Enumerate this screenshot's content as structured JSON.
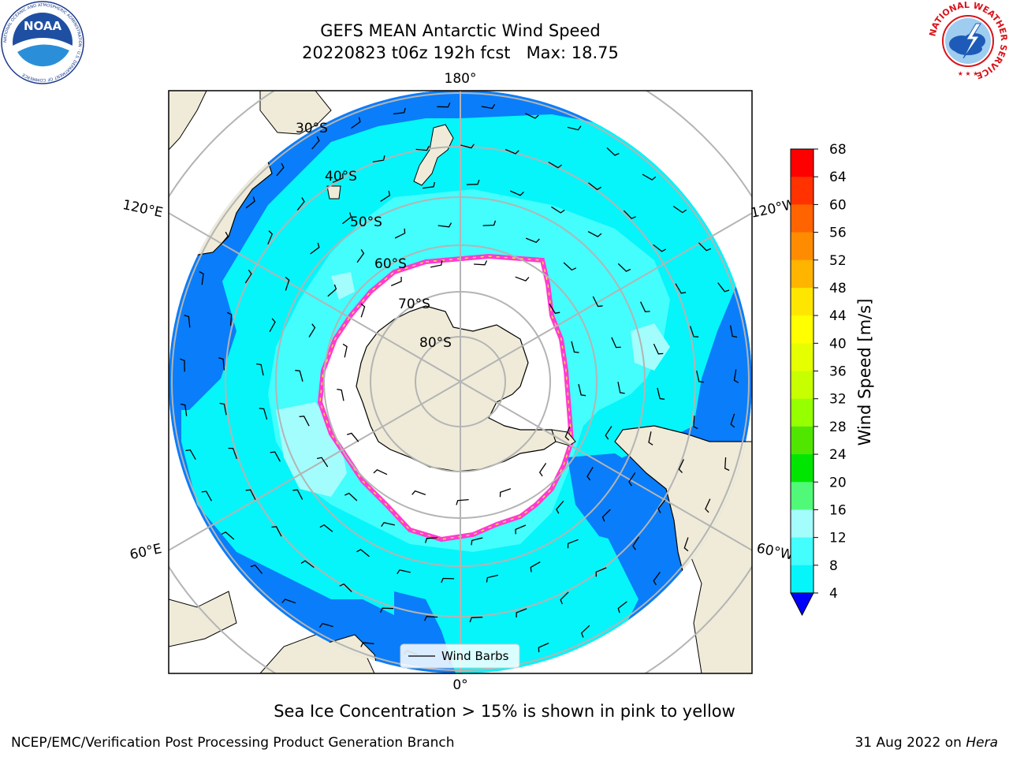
{
  "header": {
    "title": "GEFS MEAN Antarctic Wind Speed",
    "subtitle": "20220823 t06z 192h fcst   Max: 18.75"
  },
  "map": {
    "longitude_labels": {
      "top": "180°",
      "bottom": "0°",
      "upper_left": "120°E",
      "upper_right": "120°W",
      "lower_left": "60°E",
      "lower_right": "60°W"
    },
    "latitude_labels": [
      "30°S",
      "40°S",
      "50°S",
      "60°S",
      "70°S",
      "80°S"
    ],
    "legend_label": "Wind Barbs",
    "colors": {
      "land": "#efebd8",
      "sea_ice": "#ffffff",
      "ice_edge_pink": "#ff3ccf",
      "ice_edge_yellow": "#ffd84a",
      "wind_4_8": "#0a7dfa",
      "wind_8_12": "#05f5fa",
      "wind_12_16": "#44fdfd",
      "wind_16_20": "#a3fdfd"
    }
  },
  "colorbar": {
    "label": "Wind Speed [m/s]",
    "ticks": [
      "68",
      "64",
      "60",
      "56",
      "52",
      "48",
      "44",
      "40",
      "36",
      "32",
      "28",
      "24",
      "20",
      "16",
      "12",
      "8",
      "4"
    ],
    "colors": [
      "#ff0000",
      "#ff3200",
      "#ff6400",
      "#ff8c00",
      "#ffb400",
      "#ffe600",
      "#ffff00",
      "#e6ff00",
      "#c8ff00",
      "#96ff00",
      "#50e600",
      "#00e600",
      "#50fa78",
      "#a3fdfd",
      "#44fdfd",
      "#05f5fa",
      "#0a7dfa"
    ],
    "under_color": "#0000ff"
  },
  "caption": "Sea Ice Concentration > 15% is shown in pink to yellow",
  "footer": {
    "left": "NCEP/EMC/Verification Post Processing Product Generation Branch",
    "right_date": "31 Aug 2022 on ",
    "right_host": "Hera"
  },
  "logos": {
    "noaa_text": "NOAA",
    "noaa_ring": "NATIONAL OCEANIC AND ATMOSPHERIC ADMINISTRATION · U.S. DEPARTMENT OF COMMERCE",
    "nws_ring": "NATIONAL WEATHER SERVICE"
  }
}
